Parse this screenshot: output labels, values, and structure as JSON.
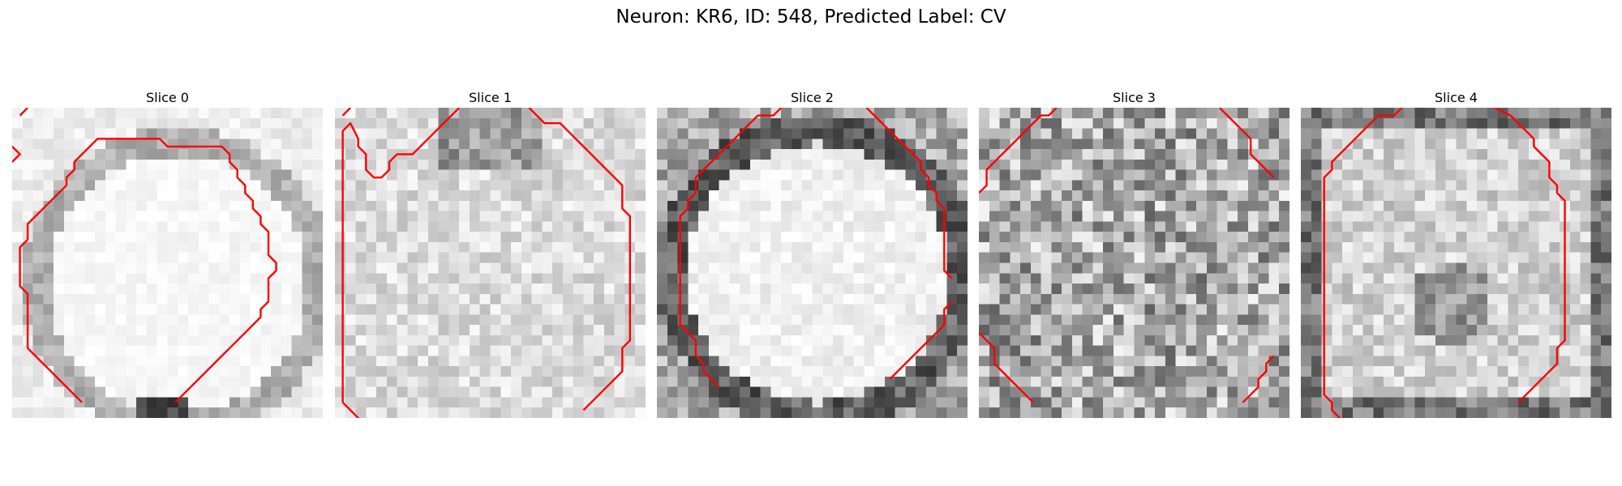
{
  "figure": {
    "title": "Neuron: KR6, ID: 548, Predicted Label: CV",
    "contour_color": "#ff0000"
  },
  "panels": [
    {
      "title": "Slice 0",
      "image": "grayscale-micrograph-bright-round-cell-dark-rim",
      "contour": "red-cell-outline"
    },
    {
      "title": "Slice 1",
      "image": "grayscale-micrograph-faint-texture",
      "contour": "red-cell-outline"
    },
    {
      "title": "Slice 2",
      "image": "grayscale-micrograph-bright-round-cell-dark-ring",
      "contour": "red-cell-outline"
    },
    {
      "title": "Slice 3",
      "image": "grayscale-micrograph-noisy-texture",
      "contour": "red-cell-outline"
    },
    {
      "title": "Slice 4",
      "image": "grayscale-micrograph-cell-with-dark-center",
      "contour": "red-cell-outline"
    }
  ]
}
